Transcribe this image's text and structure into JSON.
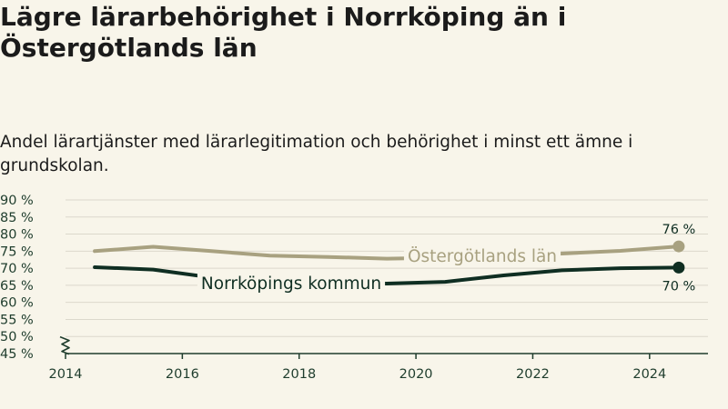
{
  "title": "Lägre lärarbehörighet i Norrköping än i Östergötlands län",
  "subtitle": "Andel lärartjänster med lärarlegitimation och behörighet i minst ett ämne i grundskolan.",
  "colors": {
    "background": "#f8f5ea",
    "grid": "#dcd8cc",
    "axis": "#1f3d2d",
    "lan": "#a8a180",
    "kommun": "#0f2e22"
  },
  "chart_data": {
    "type": "line",
    "title": "Lägre lärarbehörighet i Norrköping än i Östergötlands län",
    "subtitle": "Andel lärartjänster med lärarlegitimation och behörighet i minst ett ämne i grundskolan.",
    "xlim": [
      2014,
      2025
    ],
    "ylim": [
      45,
      90
    ],
    "x_ticks": [
      "2014",
      "2016",
      "2018",
      "2020",
      "2022",
      "2024"
    ],
    "y_ticks": [
      "90 %",
      "85 %",
      "80 %",
      "75 %",
      "70 %",
      "65 %",
      "60 %",
      "55 %",
      "50 %",
      "45 %"
    ],
    "axis_break": true,
    "grid": true,
    "series": [
      {
        "name": "Östergötlands län",
        "color": "#a8a180",
        "x": [
          2014.5,
          2015.5,
          2016.5,
          2017.5,
          2018.5,
          2019.5,
          2020.5,
          2021.5,
          2022.5,
          2023.5,
          2024.5
        ],
        "y": [
          75.0,
          76.3,
          75.0,
          73.7,
          73.3,
          72.8,
          73.1,
          73.6,
          74.3,
          75.1,
          76.4
        ],
        "end_label": "76 %"
      },
      {
        "name": "Norrköpings kommun",
        "color": "#0f2e22",
        "x": [
          2014.5,
          2015.5,
          2016.5,
          2017.5,
          2018.5,
          2019.5,
          2020.5,
          2021.5,
          2022.5,
          2023.5,
          2024.5
        ],
        "y": [
          70.3,
          69.6,
          67.3,
          66.3,
          65.7,
          65.5,
          66.0,
          67.9,
          69.4,
          70.0,
          70.2
        ],
        "end_label": "70 %"
      }
    ]
  }
}
